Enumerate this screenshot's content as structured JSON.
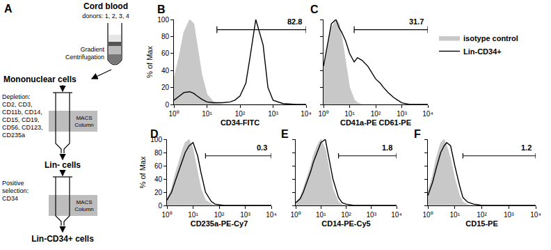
{
  "panel_a": {
    "label": "A",
    "source": {
      "title": "Cord blood",
      "subtitle": "donors: 1, 2, 3, 4"
    },
    "step1": [
      "Gradient",
      "Centrifugation"
    ],
    "stage1": "Mononuclear cells",
    "depletion": [
      "Depletion:",
      "CD2, CD3,",
      "CD11b, CD14,",
      "CD15, CD19,",
      "CD56, CD123,",
      "CD235a"
    ],
    "column_label": [
      "MACS",
      "Column"
    ],
    "stage2": "Lin- cells",
    "selection": [
      "Positive",
      "selection:",
      "CD34"
    ],
    "stage3": "Lin-CD34+ cells"
  },
  "chart_data": [
    {
      "type": "histogram_overlay",
      "panel": "B",
      "xlabel": "CD34-FITC",
      "ylabel": "% of Max",
      "log": "x",
      "grid": false,
      "xlim": [
        1,
        10000
      ],
      "ylim": [
        0,
        100
      ],
      "xticks": [
        {
          "value": 1,
          "label": "10⁰"
        },
        {
          "value": 10,
          "label": "10¹"
        },
        {
          "value": 100,
          "label": "10²"
        },
        {
          "value": 1000,
          "label": "10³"
        },
        {
          "value": 10000,
          "label": "10⁴"
        }
      ],
      "yticks": [
        0,
        20,
        40,
        60,
        80,
        100
      ],
      "x": [
        1,
        1.5,
        2,
        3,
        4,
        5,
        7,
        10,
        15,
        20,
        30,
        50,
        70,
        100,
        150,
        200,
        300,
        500,
        700,
        1000,
        2000,
        5000,
        10000
      ],
      "series": [
        {
          "name": "isotype control",
          "type": "area",
          "color": "#c8c8c8",
          "values": [
            30,
            60,
            85,
            100,
            95,
            70,
            35,
            12,
            4,
            1,
            0,
            0,
            0,
            0,
            0,
            0,
            0,
            0,
            0,
            0,
            0,
            0,
            0
          ]
        },
        {
          "name": "Lin-CD34+",
          "type": "line",
          "color": "#000000",
          "values": [
            5,
            10,
            14,
            15,
            13,
            10,
            6,
            3,
            2,
            2,
            2,
            3,
            5,
            10,
            25,
            55,
            100,
            70,
            20,
            5,
            1,
            0,
            0
          ]
        }
      ],
      "gate": [
        20,
        10000
      ],
      "gate_y": 88,
      "gate_value": 82.8
    },
    {
      "type": "histogram_overlay",
      "panel": "C",
      "xlabel": "CD41a-PE CD61-PE",
      "log": "x",
      "grid": false,
      "tick_labels": "x",
      "legend": "right",
      "xlim": [
        1,
        10000
      ],
      "ylim": [
        0,
        100
      ],
      "xticks": [
        {
          "value": 1,
          "label": "10⁰"
        },
        {
          "value": 10,
          "label": "10¹"
        },
        {
          "value": 100,
          "label": "10²"
        },
        {
          "value": 1000,
          "label": "10³"
        },
        {
          "value": 10000,
          "label": "10⁴"
        }
      ],
      "yticks": [
        0,
        20,
        40,
        60,
        80,
        100
      ],
      "x": [
        1,
        1.5,
        2,
        3,
        4,
        5,
        7,
        10,
        15,
        20,
        30,
        50,
        70,
        100,
        150,
        200,
        300,
        500,
        700,
        1000,
        2000,
        5000,
        10000
      ],
      "series": [
        {
          "name": "isotype control",
          "type": "area",
          "color": "#c8c8c8",
          "values": [
            40,
            70,
            90,
            100,
            95,
            80,
            50,
            20,
            6,
            2,
            0,
            0,
            0,
            0,
            0,
            0,
            0,
            0,
            0,
            0,
            0,
            0,
            0
          ]
        },
        {
          "name": "Lin-CD34+",
          "type": "line",
          "color": "#000000",
          "values": [
            45,
            75,
            95,
            100,
            90,
            85,
            75,
            60,
            50,
            55,
            52,
            45,
            38,
            30,
            25,
            20,
            14,
            8,
            5,
            2,
            0,
            0,
            0
          ]
        }
      ],
      "gate": [
        15,
        10000
      ],
      "gate_y": 88,
      "gate_value": 31.7
    },
    {
      "type": "histogram_overlay",
      "panel": "D",
      "xlabel": "CD235a-PE-Cy7",
      "ylabel": "% of Max",
      "log": "x",
      "grid": false,
      "xlim": [
        1,
        10000
      ],
      "ylim": [
        0,
        100
      ],
      "xticks": [
        {
          "value": 1,
          "label": "10⁰"
        },
        {
          "value": 10,
          "label": "10¹"
        },
        {
          "value": 100,
          "label": "10²"
        },
        {
          "value": 1000,
          "label": "10³"
        },
        {
          "value": 10000,
          "label": "10⁴"
        }
      ],
      "yticks": [
        0,
        20,
        40,
        60,
        80,
        100
      ],
      "x": [
        1,
        1.5,
        2,
        3,
        4,
        5,
        7,
        10,
        15,
        20,
        30,
        50,
        70,
        100,
        150,
        200,
        300,
        500,
        700,
        1000,
        2000,
        5000,
        10000
      ],
      "series": [
        {
          "name": "isotype control",
          "type": "area",
          "color": "#c8c8c8",
          "values": [
            10,
            25,
            45,
            70,
            85,
            95,
            100,
            85,
            50,
            25,
            8,
            2,
            0,
            0,
            0,
            0,
            0,
            0,
            0,
            0,
            0,
            0,
            0
          ]
        },
        {
          "name": "Lin-CD34+",
          "type": "line",
          "color": "#000000",
          "values": [
            8,
            20,
            35,
            55,
            70,
            80,
            90,
            95,
            75,
            50,
            20,
            6,
            2,
            1,
            0,
            0,
            0,
            0,
            0,
            0,
            0,
            0,
            0
          ]
        }
      ],
      "gate": [
        30,
        10000
      ],
      "gate_y": 75,
      "gate_value": 0.3
    },
    {
      "type": "histogram_overlay",
      "panel": "E",
      "xlabel": "CD14-PE-Cy5",
      "log": "x",
      "grid": false,
      "tick_labels": "x",
      "xlim": [
        1,
        10000
      ],
      "ylim": [
        0,
        100
      ],
      "xticks": [
        {
          "value": 1,
          "label": "10⁰"
        },
        {
          "value": 10,
          "label": "10¹"
        },
        {
          "value": 100,
          "label": "10²"
        },
        {
          "value": 1000,
          "label": "10³"
        },
        {
          "value": 10000,
          "label": "10⁴"
        }
      ],
      "yticks": [
        0,
        20,
        40,
        60,
        80,
        100
      ],
      "x": [
        1,
        1.5,
        2,
        3,
        4,
        5,
        7,
        10,
        15,
        20,
        30,
        50,
        70,
        100,
        150,
        200,
        300,
        500,
        700,
        1000,
        2000,
        5000,
        10000
      ],
      "series": [
        {
          "name": "isotype control",
          "type": "area",
          "color": "#c8c8c8",
          "values": [
            5,
            12,
            25,
            45,
            60,
            75,
            90,
            100,
            85,
            60,
            25,
            5,
            1,
            0,
            0,
            0,
            0,
            0,
            0,
            0,
            0,
            0,
            0
          ]
        },
        {
          "name": "Lin-CD34+",
          "type": "line",
          "color": "#000000",
          "values": [
            4,
            10,
            20,
            38,
            52,
            65,
            80,
            95,
            100,
            75,
            40,
            12,
            4,
            2,
            1,
            0,
            0,
            0,
            0,
            0,
            0,
            0,
            0
          ]
        }
      ],
      "gate": [
        50,
        10000
      ],
      "gate_y": 75,
      "gate_value": 1.8
    },
    {
      "type": "histogram_overlay",
      "panel": "F",
      "xlabel": "CD15-PE",
      "log": "x",
      "grid": false,
      "tick_labels": "x",
      "xlim": [
        1,
        10000
      ],
      "ylim": [
        0,
        100
      ],
      "xticks": [
        {
          "value": 1,
          "label": "10⁰"
        },
        {
          "value": 10,
          "label": "10¹"
        },
        {
          "value": 100,
          "label": "10²"
        },
        {
          "value": 1000,
          "label": "10³"
        },
        {
          "value": 10000,
          "label": "10⁴"
        }
      ],
      "yticks": [
        0,
        20,
        40,
        60,
        80,
        100
      ],
      "x": [
        1,
        1.5,
        2,
        3,
        4,
        5,
        7,
        10,
        15,
        20,
        30,
        50,
        70,
        100,
        150,
        200,
        300,
        500,
        700,
        1000,
        2000,
        5000,
        10000
      ],
      "series": [
        {
          "name": "isotype control",
          "type": "area",
          "color": "#c8c8c8",
          "values": [
            20,
            45,
            70,
            95,
            100,
            90,
            70,
            40,
            15,
            5,
            1,
            0,
            0,
            0,
            0,
            0,
            0,
            0,
            0,
            0,
            0,
            0,
            0
          ]
        },
        {
          "name": "Lin-CD34+",
          "type": "line",
          "color": "#000000",
          "values": [
            15,
            35,
            55,
            80,
            90,
            95,
            90,
            60,
            30,
            12,
            5,
            2,
            1,
            0,
            0,
            0,
            0,
            0,
            0,
            0,
            0,
            0,
            0
          ]
        }
      ],
      "gate": [
        20,
        10000
      ],
      "gate_y": 75,
      "gate_value": 1.2
    }
  ]
}
